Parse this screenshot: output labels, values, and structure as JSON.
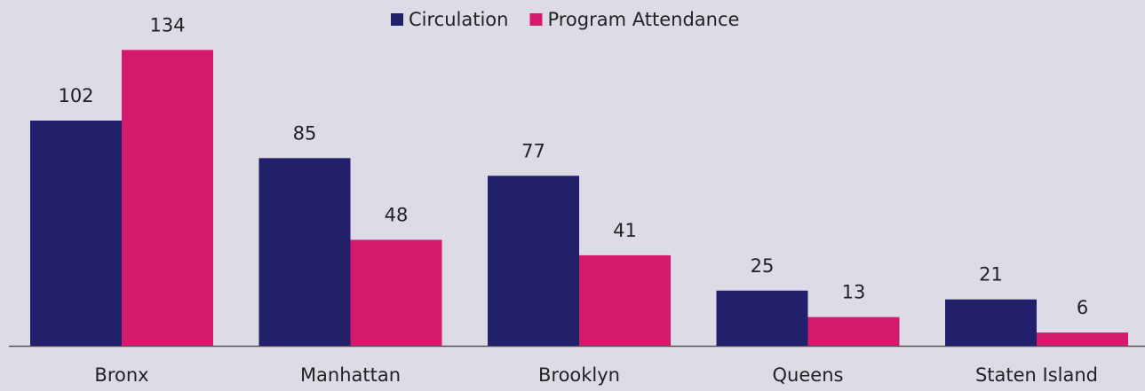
{
  "chart_data": {
    "type": "bar",
    "categories": [
      "Bronx",
      "Manhattan",
      "Brooklyn",
      "Queens",
      "Staten Island"
    ],
    "series": [
      {
        "name": "Circulation",
        "color": "#22206b",
        "values": [
          102,
          85,
          77,
          25,
          21
        ]
      },
      {
        "name": "Program Attendance",
        "color": "#d41a6d",
        "values": [
          134,
          48,
          41,
          13,
          6
        ]
      }
    ],
    "legend": "top"
  }
}
